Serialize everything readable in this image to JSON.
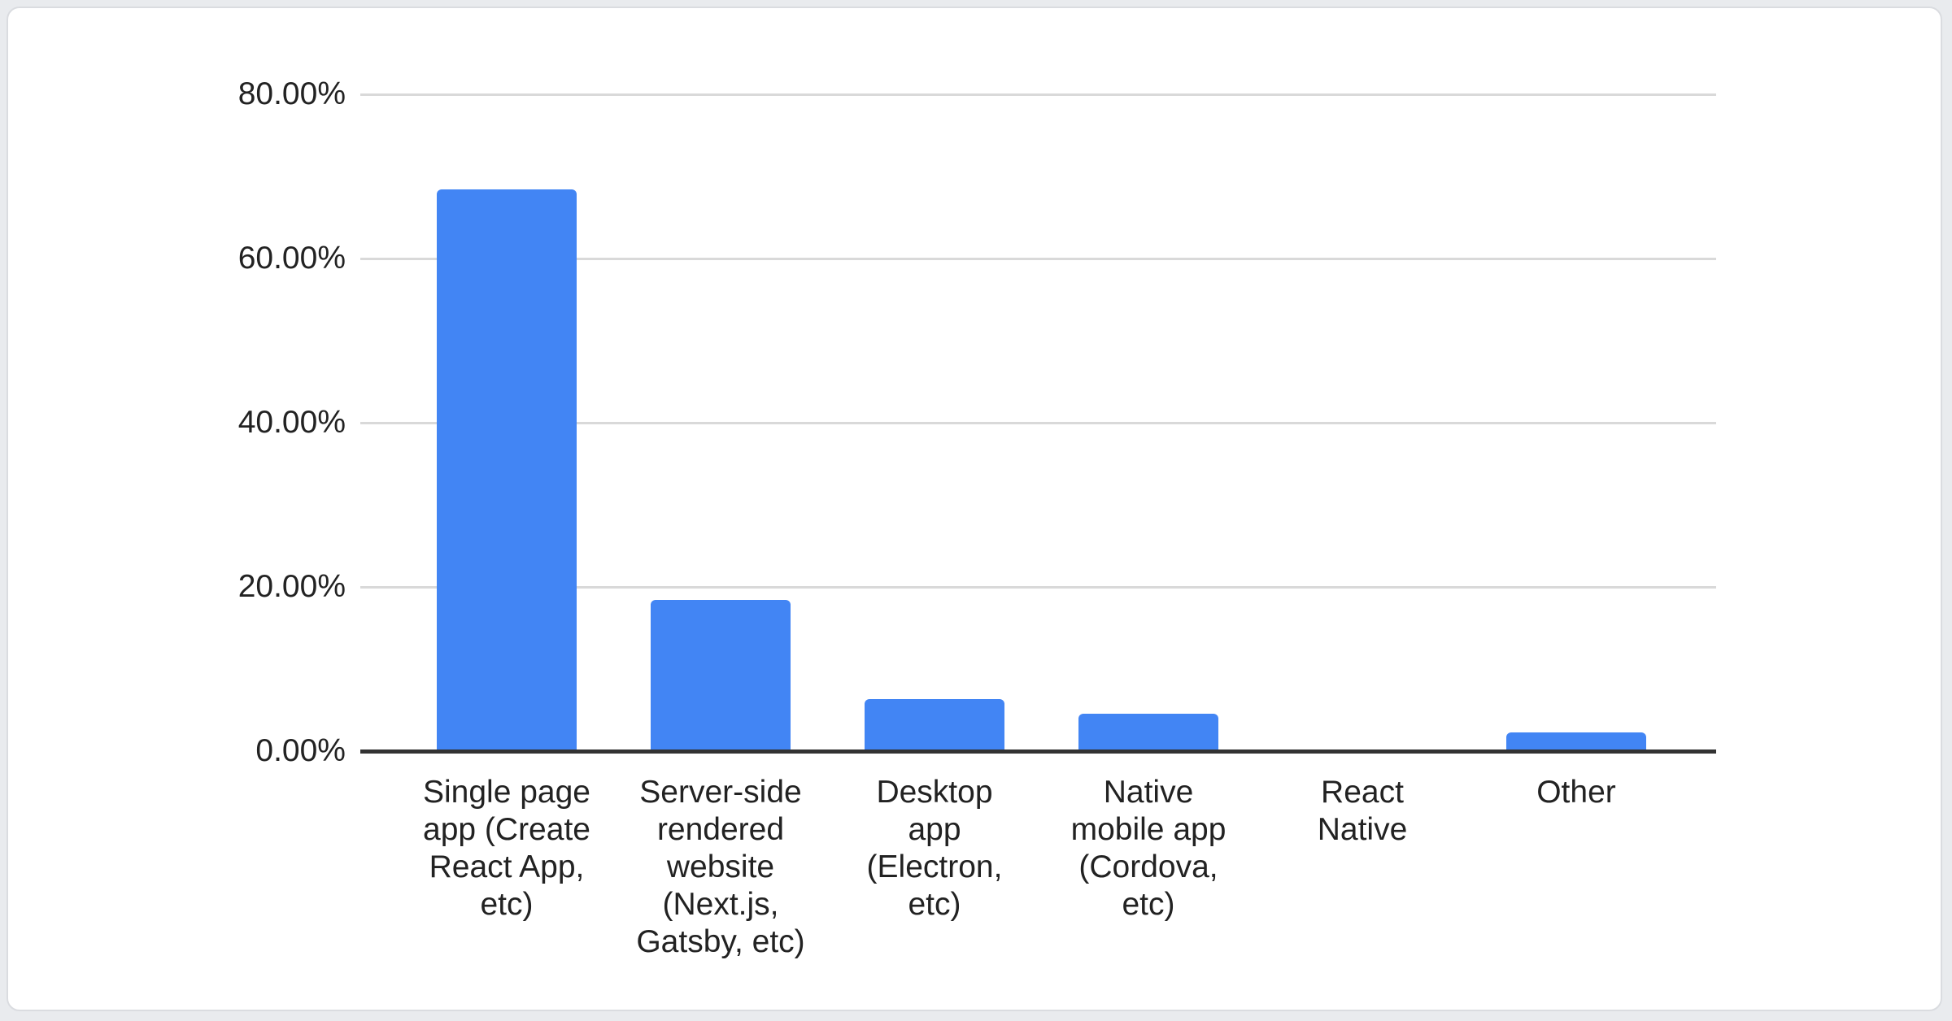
{
  "chart_data": {
    "type": "bar",
    "title": "",
    "xlabel": "",
    "ylabel": "",
    "categories": [
      "Single page app (Create React App, etc)",
      "Server-side rendered website (Next.js, Gatsby, etc)",
      "Desktop app (Electron, etc)",
      "Native mobile app (Cordova, etc)",
      "React Native",
      "Other"
    ],
    "category_lines": [
      [
        "Single page",
        "app (Create",
        "React App,",
        "etc)"
      ],
      [
        "Server-side",
        "rendered",
        "website",
        "(Next.js,",
        "Gatsby, etc)"
      ],
      [
        "Desktop",
        "app",
        "(Electron,",
        "etc)"
      ],
      [
        "Native",
        "mobile app",
        "(Cordova,",
        "etc)"
      ],
      [
        "React",
        "Native"
      ],
      [
        "Other"
      ]
    ],
    "values": [
      68.4,
      18.4,
      6.3,
      4.6,
      0,
      2.3
    ],
    "value_unit": "%",
    "y_ticks": [
      {
        "value": 80,
        "label": "80.00%"
      },
      {
        "value": 60,
        "label": "60.00%"
      },
      {
        "value": 40,
        "label": "40.00%"
      },
      {
        "value": 20,
        "label": "20.00%"
      },
      {
        "value": 0,
        "label": "0.00%"
      }
    ],
    "ylim": [
      0,
      80
    ],
    "grid": true,
    "legend": "none"
  },
  "colors": {
    "bar": "#4285f4",
    "gridline": "#d9d9d9",
    "axis": "#333333",
    "text": "#222222",
    "card_background": "#ffffff",
    "card_border": "#dadce0",
    "page_background": "#e9ebee"
  }
}
